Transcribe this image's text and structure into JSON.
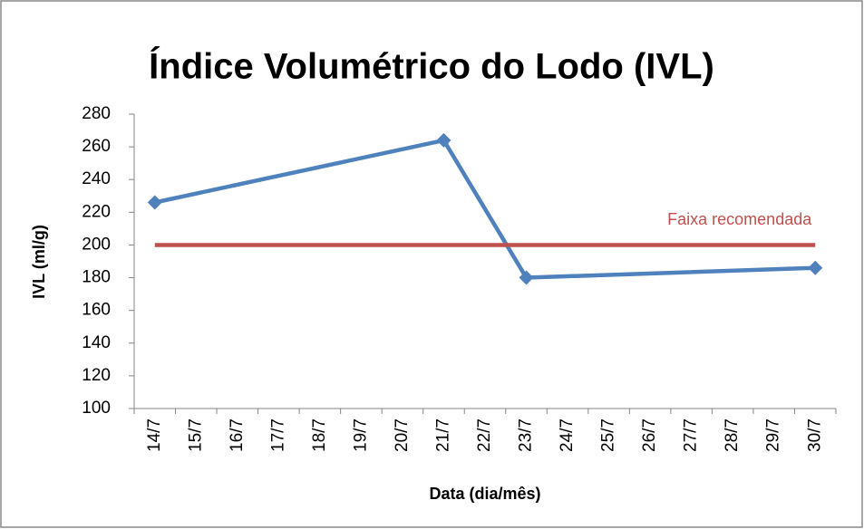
{
  "chart_data": {
    "type": "line",
    "title": "Índice Volumétrico do Lodo (IVL)",
    "x_label": "Data (dia/mês)",
    "y_label": "IVL (ml/g)",
    "categories": [
      "14/7",
      "15/7",
      "16/7",
      "17/7",
      "18/7",
      "19/7",
      "20/7",
      "21/7",
      "22/7",
      "23/7",
      "24/7",
      "25/7",
      "26/7",
      "27/7",
      "28/7",
      "29/7",
      "30/7"
    ],
    "series": [
      {
        "name": "IVL",
        "color": "#4f81bd",
        "marker": "diamond",
        "x": [
          "14/7",
          "21/7",
          "23/7",
          "30/7"
        ],
        "values": [
          226,
          264,
          180,
          186
        ]
      },
      {
        "name": "Faixa recomendada",
        "color": "#c0504d",
        "x": [
          "14/7",
          "30/7"
        ],
        "values": [
          200,
          200
        ]
      }
    ],
    "ylim": [
      100,
      280
    ],
    "yticks": [
      100,
      120,
      140,
      160,
      180,
      200,
      220,
      240,
      260,
      280
    ],
    "grid": false
  }
}
